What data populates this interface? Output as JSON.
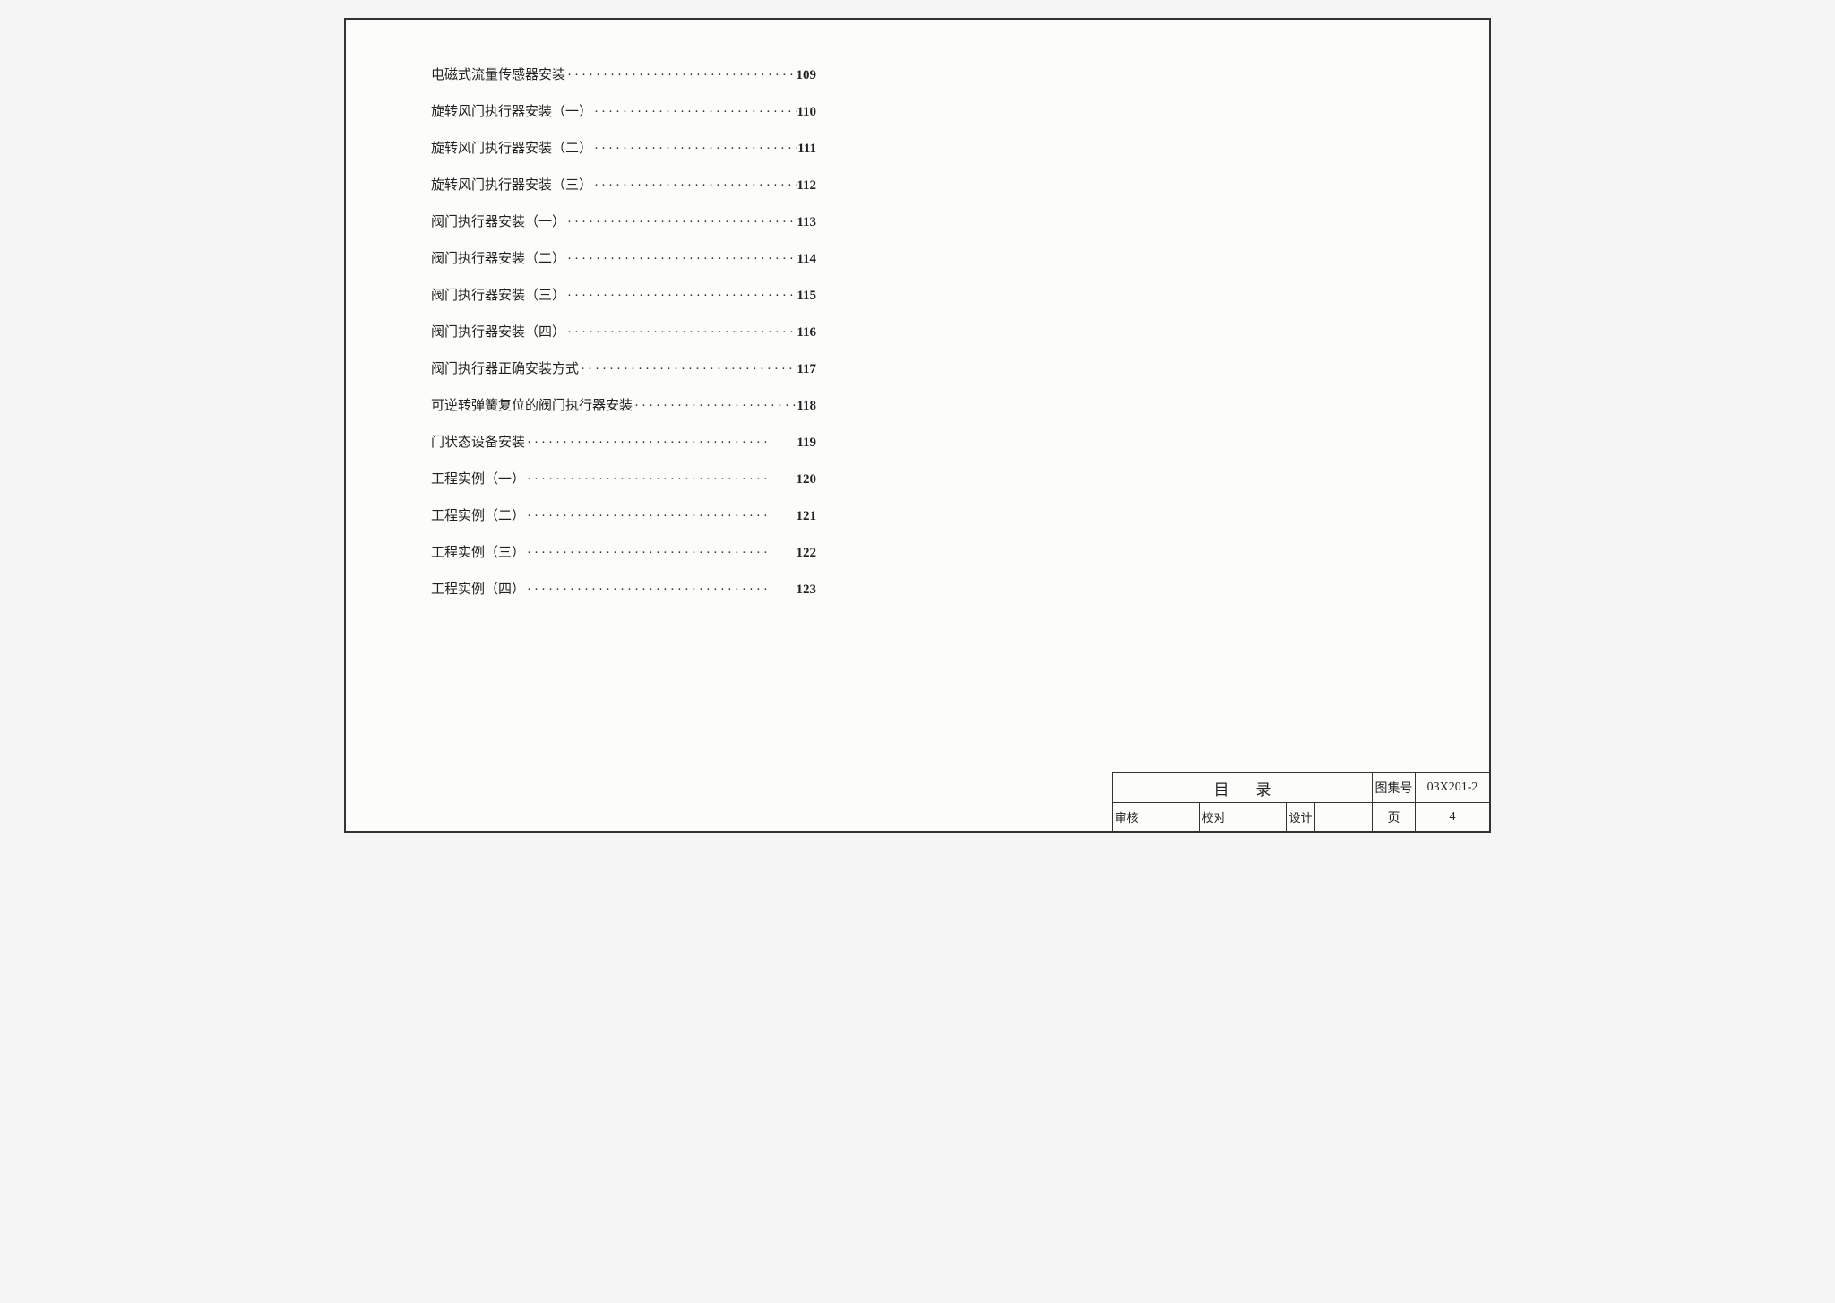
{
  "toc": {
    "entries": [
      {
        "title": "电磁式流量传感器安装",
        "page": "109"
      },
      {
        "title": "旋转风门执行器安装（一）",
        "page": "110"
      },
      {
        "title": "旋转风门执行器安装（二）",
        "page": "111"
      },
      {
        "title": "旋转风门执行器安装（三）",
        "page": "112"
      },
      {
        "title": "阀门执行器安装（一）",
        "page": "113"
      },
      {
        "title": "阀门执行器安装（二）",
        "page": "114"
      },
      {
        "title": "阀门执行器安装（三）",
        "page": "115"
      },
      {
        "title": "阀门执行器安装（四）",
        "page": "116"
      },
      {
        "title": "阀门执行器正确安装方式",
        "page": "117"
      },
      {
        "title": "可逆转弹簧复位的阀门执行器安装",
        "page": "118"
      },
      {
        "title": "门状态设备安装",
        "page": "119"
      },
      {
        "title": "工程实例（一）",
        "page": "120"
      },
      {
        "title": "工程实例（二）",
        "page": "121"
      },
      {
        "title": "工程实例（三）",
        "page": "122"
      },
      {
        "title": "工程实例（四）",
        "page": "123"
      }
    ]
  },
  "titleBlock": {
    "title": "目录",
    "codeLabel": "图集号",
    "codeValue": "03X201-2",
    "row2": {
      "reviewLabel": "审核",
      "reviewSig": "",
      "checkLabel": "校对",
      "checkSig": "",
      "designLabel": "设计",
      "designSig": "",
      "pageLabel": "页",
      "pageValue": "4"
    }
  },
  "style": {
    "borderColor": "#333333",
    "background": "#fcfcfa",
    "textColor": "#222222",
    "fontSize": 15
  }
}
